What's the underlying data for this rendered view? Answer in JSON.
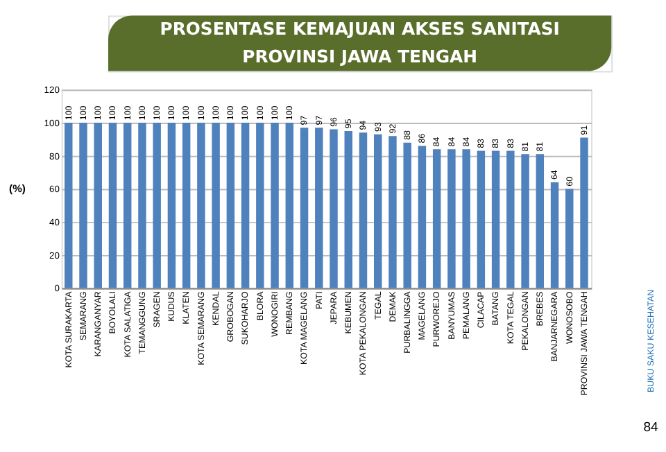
{
  "chart_data": {
    "type": "bar",
    "title": "PROSENTASE KEMAJUAN AKSES SANITASI\nPROVINSI JAWA TENGAH",
    "ylabel": "(%)",
    "categories": [
      "KOTA SURAKARTA",
      "SEMARANG",
      "KARANGANYAR",
      "BOYOLALI",
      "KOTA SALATIGA",
      "TEMANGGUNG",
      "SRAGEN",
      "KUDUS",
      "KLATEN",
      "KOTA SEMARANG",
      "KENDAL",
      "GROBOGAN",
      "SUKOHARJO",
      "BLORA",
      "WONOGIRI",
      "REMBANG",
      "KOTA MAGELANG",
      "PATI",
      "JEPARA",
      "KEBUMEN",
      "KOTA PEKALONGAN",
      "TEGAL",
      "DEMAK",
      "PURBALINGGA",
      "MAGELANG",
      "PURWOREJO",
      "BANYUMAS",
      "PEMALANG",
      "CILACAP",
      "BATANG",
      "KOTA TEGAL",
      "PEKALONGAN",
      "BREBES",
      "BANJARNEGARA",
      "WONOSOBO",
      "PROVINSI JAWA TENGAH"
    ],
    "values": [
      100,
      100,
      100,
      100,
      100,
      100,
      100,
      100,
      100,
      100,
      100,
      100,
      100,
      100,
      100,
      100,
      97,
      97,
      96,
      95,
      94,
      93,
      92,
      88,
      86,
      84,
      84,
      84,
      83,
      83,
      83,
      81,
      81,
      64,
      60,
      91
    ],
    "color": "#4f81bd",
    "ylim": [
      0,
      120
    ],
    "yticks": [
      0,
      20,
      40,
      60,
      80,
      100,
      120
    ],
    "grid": "y",
    "data_labels": true,
    "annotations": [
      "BUKU SAKU KESEHATAN",
      "84"
    ]
  }
}
